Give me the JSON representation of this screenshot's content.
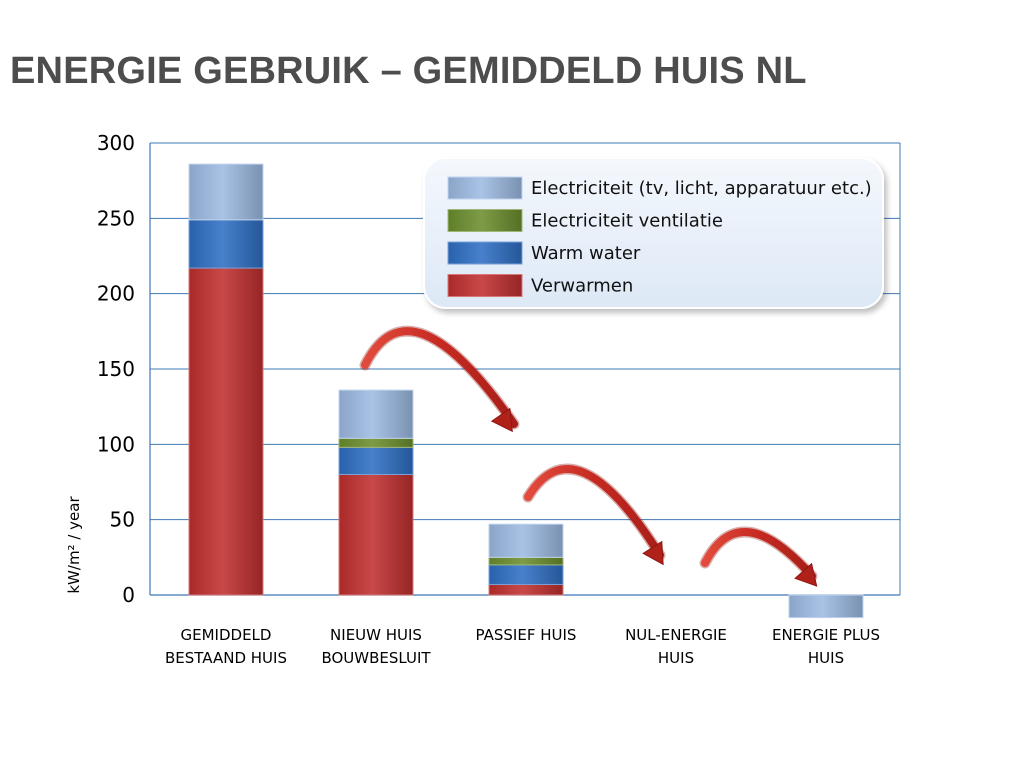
{
  "slide": {
    "title": "ENERGIE GEBRUIK – GEMIDDELD HUIS NL"
  },
  "chart_data": {
    "type": "bar",
    "stacked": true,
    "ylabel": "kW/m² / year",
    "ylim": [
      0,
      300
    ],
    "yticks": [
      0,
      50,
      100,
      150,
      200,
      250,
      300
    ],
    "grid": true,
    "legend_position": "top-right",
    "categories": [
      [
        "GEMIDDELD",
        "BESTAAND HUIS"
      ],
      [
        "NIEUW HUIS",
        "BOUWBESLUIT"
      ],
      [
        "PASSIEF HUIS"
      ],
      [
        "NUL-ENERGIE",
        "HUIS"
      ],
      [
        "ENERGIE PLUS",
        "HUIS"
      ]
    ],
    "series": [
      {
        "name": "Verwarmen",
        "color": "#c0302f",
        "values": [
          217,
          80,
          7,
          0,
          0
        ]
      },
      {
        "name": "Warm water",
        "color": "#2f6fc4",
        "values": [
          32,
          18,
          13,
          0,
          0
        ]
      },
      {
        "name": "Electriciteit ventilatie",
        "color": "#6c8f2e",
        "values": [
          0,
          6,
          5,
          0,
          0
        ]
      },
      {
        "name": "Electriciteit (tv, licht, apparatuur etc.)",
        "color": "#9dbbe3",
        "values": [
          37,
          32,
          22,
          0,
          -15
        ]
      }
    ],
    "legend_order": [
      "Electriciteit (tv, licht, apparatuur etc.)",
      "Electriciteit ventilatie",
      "Warm water",
      "Verwarmen"
    ],
    "annotations": [
      {
        "type": "curved-arrow",
        "from_category": 1,
        "to_category": 2
      },
      {
        "type": "curved-arrow",
        "from_category": 2,
        "to_category": 3
      },
      {
        "type": "curved-arrow",
        "from_category": 3,
        "to_category": 4
      }
    ]
  }
}
